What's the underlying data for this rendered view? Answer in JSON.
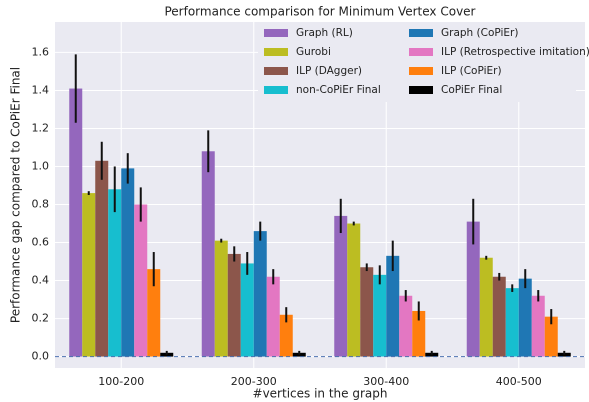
{
  "chart_data": {
    "type": "bar",
    "title": "Performance comparison for Minimum Vertex Cover",
    "x_label": "#vertices in the graph",
    "y_label": "Performance gap compared to CoPiEr Final",
    "categories": [
      "100-200",
      "200-300",
      "300-400",
      "400-500"
    ],
    "series": [
      {
        "name": "Graph (RL)",
        "color": "#9467bd",
        "values": [
          1.41,
          1.08,
          0.74,
          0.71
        ],
        "errors": [
          0.18,
          0.11,
          0.09,
          0.12
        ]
      },
      {
        "name": "Gurobi",
        "color": "#bcbd22",
        "values": [
          0.86,
          0.61,
          0.7,
          0.52
        ],
        "errors": [
          0.01,
          0.01,
          0.01,
          0.01
        ]
      },
      {
        "name": "ILP (DAgger)",
        "color": "#8c564b",
        "values": [
          1.03,
          0.54,
          0.47,
          0.42
        ],
        "errors": [
          0.1,
          0.04,
          0.02,
          0.02
        ]
      },
      {
        "name": "non-CoPiEr Final",
        "color": "#17becf",
        "values": [
          0.88,
          0.49,
          0.43,
          0.36
        ],
        "errors": [
          0.12,
          0.06,
          0.05,
          0.02
        ]
      },
      {
        "name": "Graph (CoPiEr)",
        "color": "#1f77b4",
        "values": [
          0.99,
          0.66,
          0.53,
          0.41
        ],
        "errors": [
          0.08,
          0.05,
          0.08,
          0.05
        ]
      },
      {
        "name": "ILP (Retrospective imitation)",
        "color": "#e377c2",
        "values": [
          0.8,
          0.42,
          0.32,
          0.32
        ],
        "errors": [
          0.09,
          0.04,
          0.03,
          0.03
        ]
      },
      {
        "name": "ILP (CoPiEr)",
        "color": "#ff7f0e",
        "values": [
          0.46,
          0.22,
          0.24,
          0.21
        ],
        "errors": [
          0.09,
          0.04,
          0.05,
          0.04
        ]
      },
      {
        "name": "CoPiEr Final",
        "color": "#000000",
        "values": [
          0.02,
          0.02,
          0.02,
          0.02
        ],
        "errors": [
          0.01,
          0.01,
          0.01,
          0.01
        ]
      }
    ],
    "ylim": [
      -0.06,
      1.76
    ],
    "yticks": [
      {
        "value": 0,
        "label": "0.0"
      },
      0.2,
      0.4,
      0.6,
      0.8,
      {
        "value": 1,
        "label": "1.0"
      },
      1.2,
      1.4,
      1.6
    ],
    "grid": true,
    "legend": "upper right"
  }
}
